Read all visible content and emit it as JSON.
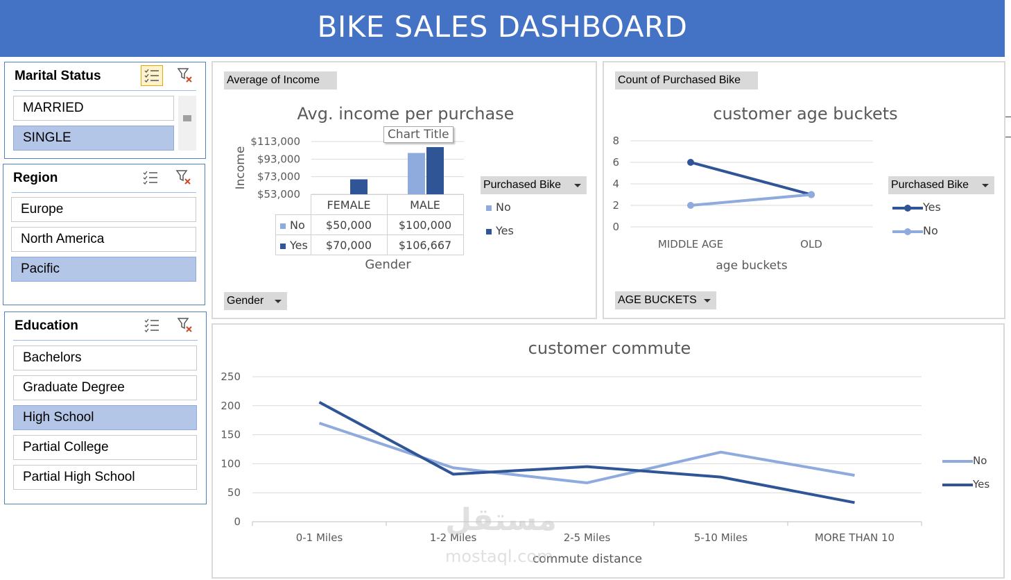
{
  "dashboard_title": "BIKE SALES DASHBOARD",
  "colors": {
    "banner": "#4472c4",
    "series_no": "#8faadc",
    "series_yes": "#2f5597",
    "selected": "#b4c6e7"
  },
  "slicers": {
    "marital": {
      "title": "Marital Status",
      "items": [
        "MARRIED",
        "SINGLE"
      ],
      "selected": [
        "SINGLE"
      ]
    },
    "region": {
      "title": "Region",
      "items": [
        "Europe",
        "North America",
        "Pacific"
      ],
      "selected": [
        "Pacific"
      ]
    },
    "education": {
      "title": "Education",
      "items": [
        "Bachelors",
        "Graduate Degree",
        "High School",
        "Partial College",
        "Partial High School"
      ],
      "selected": [
        "High School"
      ]
    }
  },
  "income_panel": {
    "value_field": "Average of Income",
    "axis_field": "Gender",
    "legend_field": "Purchased Bike",
    "tooltip": "Chart Title"
  },
  "age_panel": {
    "value_field": "Count of Purchased Bike",
    "axis_field": "AGE BUCKETS",
    "legend_field": "Purchased Bike"
  },
  "watermark": {
    "arabic": "مستقل",
    "latin": "mostaql.com"
  },
  "chart_data": [
    {
      "type": "bar",
      "title": "Avg. income per purchase",
      "xlabel": "Gender",
      "ylabel": "Income",
      "categories": [
        "FEMALE",
        "MALE"
      ],
      "series": [
        {
          "name": "No",
          "values": [
            50000,
            100000
          ],
          "display": [
            "$50,000",
            "$100,000"
          ]
        },
        {
          "name": "Yes",
          "values": [
            70000,
            106667
          ],
          "display": [
            "$70,000",
            "$106,667"
          ]
        }
      ],
      "yticks": [
        "$53,000",
        "$73,000",
        "$93,000",
        "$113,000"
      ],
      "ylim": [
        53000,
        113000
      ],
      "legend": "right",
      "data_table": true
    },
    {
      "type": "line",
      "title": "customer age  buckets",
      "xlabel": "age buckets",
      "ylabel": "",
      "categories": [
        "MIDDLE AGE",
        "OLD"
      ],
      "series": [
        {
          "name": "Yes",
          "values": [
            6,
            3
          ]
        },
        {
          "name": "No",
          "values": [
            2,
            3
          ]
        }
      ],
      "yticks": [
        0,
        2,
        4,
        6,
        8
      ],
      "ylim": [
        0,
        8
      ],
      "legend": "right"
    },
    {
      "type": "line",
      "title": "customer commute",
      "xlabel": "commute distance",
      "ylabel": "",
      "categories": [
        "0-1 Miles",
        "1-2 Miles",
        "2-5 Miles",
        "5-10 Miles",
        "MORE THAN 10"
      ],
      "series": [
        {
          "name": "No",
          "values": [
            170,
            93,
            67,
            120,
            80
          ]
        },
        {
          "name": "Yes",
          "values": [
            206,
            82,
            95,
            77,
            33
          ]
        }
      ],
      "yticks": [
        0,
        50,
        100,
        150,
        200,
        250
      ],
      "ylim": [
        0,
        250
      ],
      "legend": "right"
    }
  ]
}
